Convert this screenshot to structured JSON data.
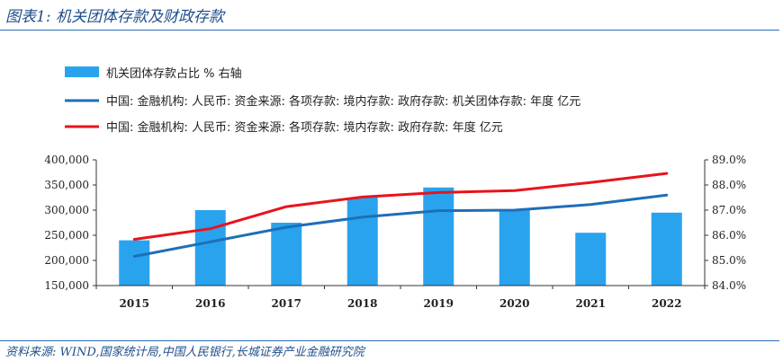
{
  "header": {
    "title": "图表1:  机关团体存款及财政存款"
  },
  "footer": {
    "source": "资料来源:  WIND,国家统计局,中国人民银行,长城证券产业金融研究院"
  },
  "chart_data": {
    "type": "bar",
    "categories": [
      "2015",
      "2016",
      "2017",
      "2018",
      "2019",
      "2020",
      "2021",
      "2022"
    ],
    "series": [
      {
        "name": "机关团体存款占比  %  右轴",
        "type": "bar",
        "axis": "right",
        "color": "#29a3ee",
        "values": [
          85.8,
          87.0,
          86.5,
          87.5,
          87.9,
          87.0,
          86.1,
          86.9
        ]
      },
      {
        "name": "中国: 金融机构: 人民币: 资金来源: 各项存款: 境内存款: 政府存款: 机关团体存款: 年度  亿元",
        "type": "line",
        "axis": "left",
        "color": "#1f6eb8",
        "values": [
          208000,
          237000,
          266000,
          286000,
          299000,
          300000,
          311000,
          330000
        ]
      },
      {
        "name": "中国: 金融机构: 人民币: 资金来源: 各项存款: 境内存款: 政府存款: 年度  亿元",
        "type": "line",
        "axis": "left",
        "color": "#e8141b",
        "values": [
          242000,
          263000,
          307000,
          326000,
          335000,
          339000,
          355000,
          373000
        ]
      }
    ],
    "y_left": {
      "ylim": [
        150000,
        400000
      ],
      "ticks": [
        "400,000",
        "350,000",
        "300,000",
        "250,000",
        "200,000",
        "150,000"
      ],
      "tick_values": [
        400000,
        350000,
        300000,
        250000,
        200000,
        150000
      ]
    },
    "y_right": {
      "ylim": [
        84.0,
        89.0
      ],
      "ticks": [
        "89.0%",
        "88.0%",
        "87.0%",
        "86.0%",
        "85.0%",
        "84.0%"
      ],
      "tick_values": [
        89,
        88,
        87,
        86,
        85,
        84
      ]
    },
    "legend_position": "top-left",
    "grid": false
  }
}
